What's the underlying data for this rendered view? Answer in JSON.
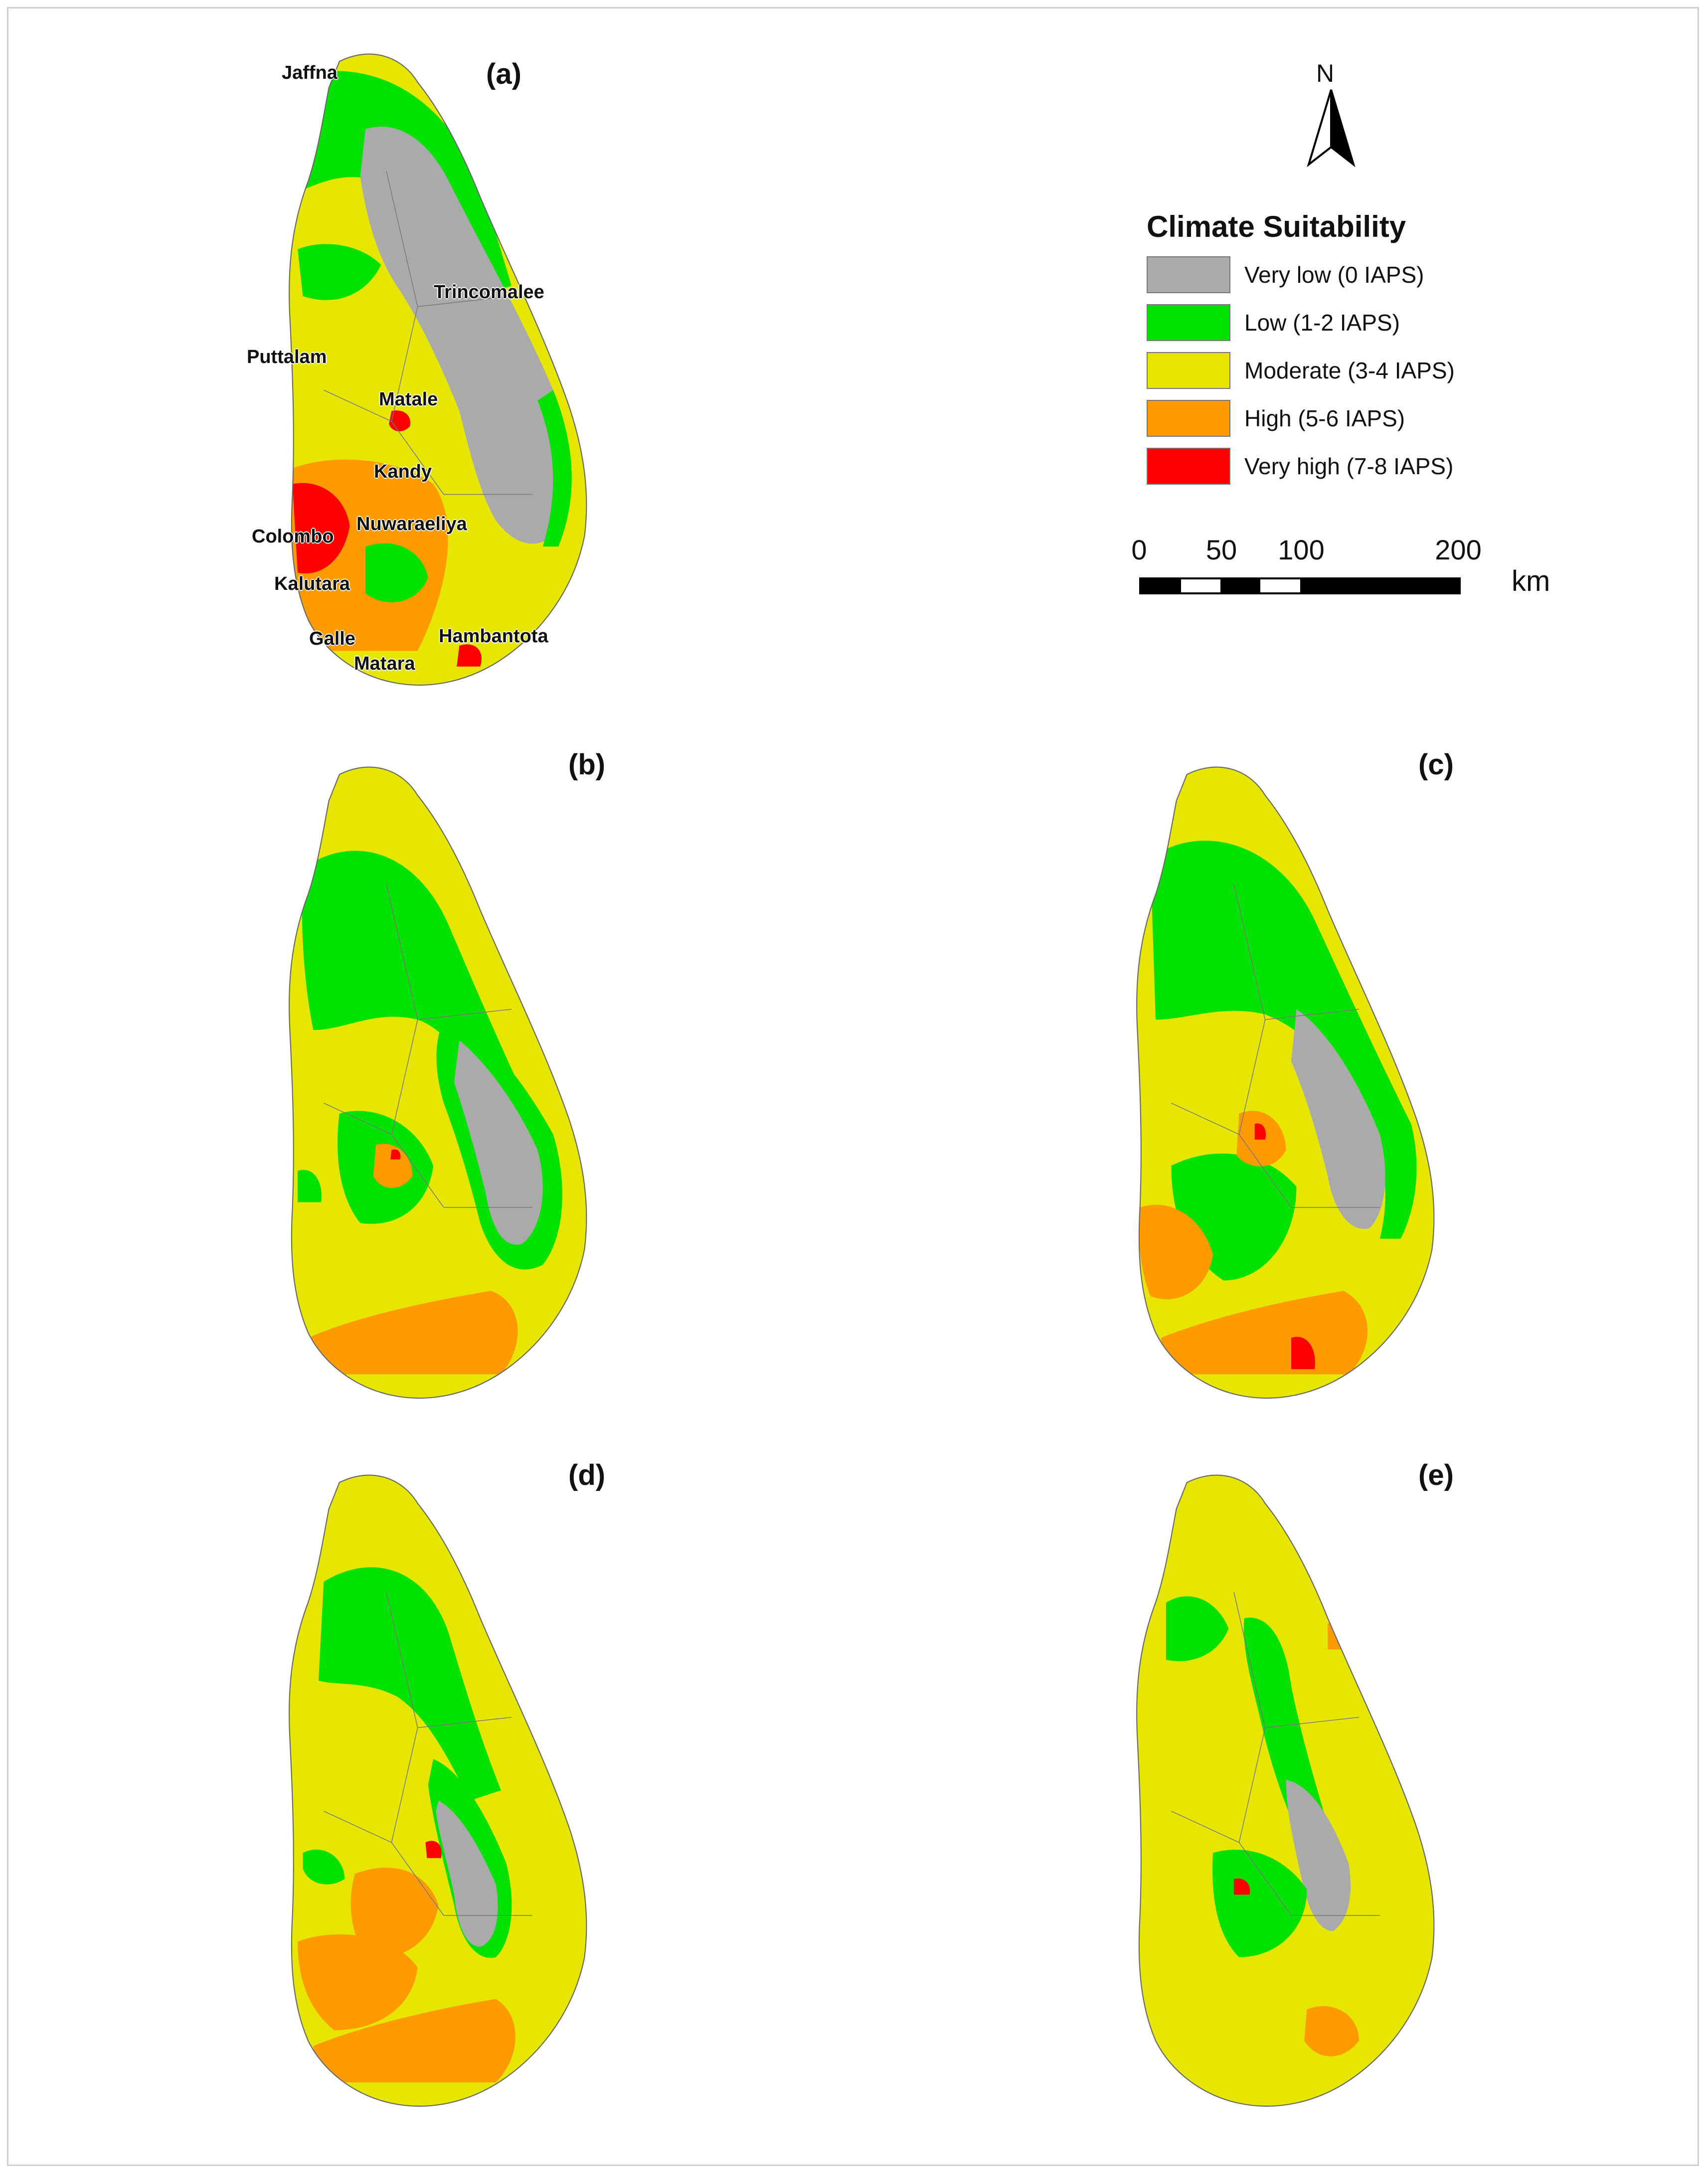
{
  "panels": [
    {
      "id": "a",
      "label": "(a)",
      "colors": [
        "#aaaaaa",
        "#00e100",
        "#e6e600",
        "#ff9a00",
        "#ff0000"
      ]
    },
    {
      "id": "b",
      "label": "(b)"
    },
    {
      "id": "c",
      "label": "(c)"
    },
    {
      "id": "d",
      "label": "(d)"
    },
    {
      "id": "e",
      "label": "(e)"
    }
  ],
  "places": {
    "jaffna": "Jaffna",
    "trincomalee": "Trincomalee",
    "puttalam": "Puttalam",
    "matale": "Matale",
    "kandy": "Kandy",
    "colombo": "Colombo",
    "nuwaraeliya": "Nuwaraeliya",
    "kalutara": "Kalutara",
    "galle": "Galle",
    "matara": "Matara",
    "hambantota": "Hambantota"
  },
  "legend": {
    "title": "Climate Suitability",
    "items": [
      {
        "label": "Very low (0 IAPS)",
        "color": "#aaaaaa"
      },
      {
        "label": "Low (1-2 IAPS)",
        "color": "#00e100"
      },
      {
        "label": "Moderate (3-4 IAPS)",
        "color": "#e6e600"
      },
      {
        "label": "High (5-6 IAPS)",
        "color": "#ff9a00"
      },
      {
        "label": "Very high (7-8 IAPS)",
        "color": "#ff0000"
      }
    ]
  },
  "north_arrow": {
    "letter": "N"
  },
  "scale_bar": {
    "ticks": [
      "0",
      "50",
      "100",
      "200"
    ],
    "unit": "km"
  }
}
